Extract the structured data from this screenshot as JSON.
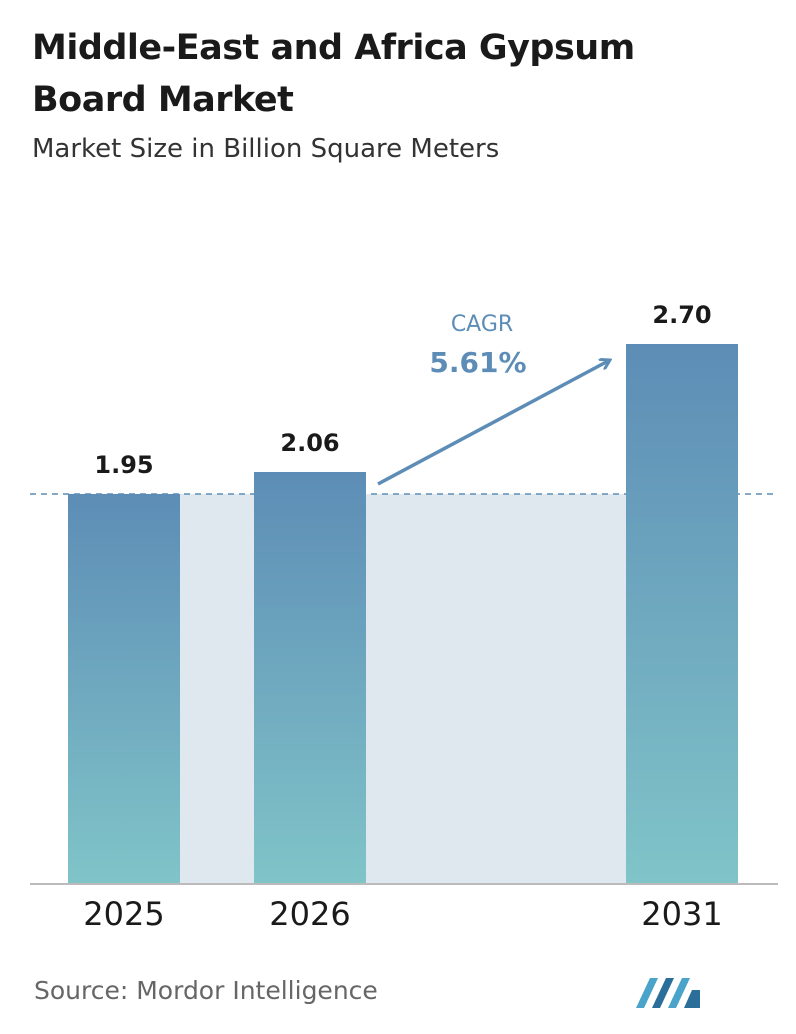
{
  "chart_data": {
    "type": "bar",
    "title": "Middle-East and Africa Gypsum Board Market",
    "subtitle": "Market Size in Billion Square Meters",
    "categories": [
      "2025",
      "2026",
      "2031"
    ],
    "values": [
      1.95,
      2.06,
      2.7
    ],
    "value_labels": [
      "1.95",
      "2.06",
      "2.70"
    ],
    "annotation": {
      "label": "CAGR",
      "value": "5.61%"
    },
    "source": "Source:  Mordor Intelligence"
  }
}
